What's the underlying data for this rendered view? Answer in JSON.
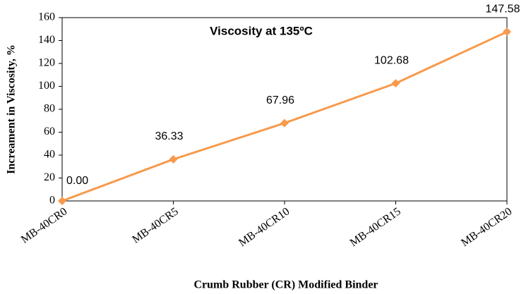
{
  "chart_data": {
    "type": "line",
    "title": "Viscosity at 135ºC",
    "x_label": "Crumb Rubber (CR) Modified Binder",
    "y_label": "Increament in Viscosity, %",
    "categories": [
      "MB-40CR0",
      "MB-40CR5",
      "MB-40CR10",
      "MB-40CR15",
      "MB-40CR20"
    ],
    "values": [
      0,
      36.33,
      67.96,
      102.68,
      147.58
    ],
    "value_labels": [
      "0.00",
      "36.33",
      "67.96",
      "102.68",
      "147.58"
    ],
    "color": "#f79a4c",
    "ylim": [
      0,
      160
    ],
    "yticks": [
      0,
      20,
      40,
      60,
      80,
      100,
      120,
      140,
      160
    ]
  }
}
